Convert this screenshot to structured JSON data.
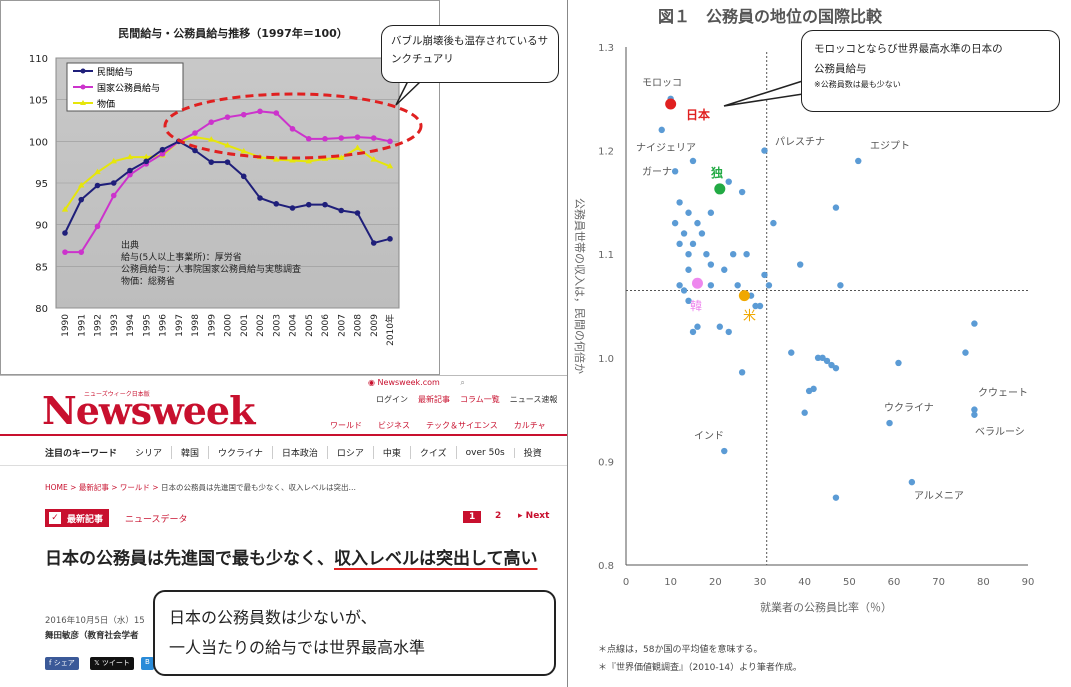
{
  "chart1": {
    "title": "民間給与・公務員給与推移（1997年＝100）",
    "y_ticks": [
      "110",
      "105",
      "100",
      "95",
      "90",
      "85",
      "80"
    ],
    "x_ticks": [
      "1990",
      "1991",
      "1992",
      "1993",
      "1994",
      "1995",
      "1996",
      "1997",
      "1998",
      "1999",
      "2000",
      "2001",
      "2002",
      "2003",
      "2004",
      "2005",
      "2006",
      "2007",
      "2008",
      "2009",
      "2010年"
    ],
    "legend": [
      "民間給与",
      "国家公務員給与",
      "物価"
    ],
    "source_lines": [
      "出典",
      "給与(5人以上事業所)：厚労省",
      "公務員給与：人事院国家公務員給与実態調査",
      "物価：総務省"
    ],
    "callout": "バブル崩壊後も温存されているサンクチュアリ",
    "colors": {
      "private": "#1f1f7a",
      "public": "#cc33cc",
      "prices": "#e6e60a",
      "highlight": "#e02020"
    }
  },
  "chart1_data": {
    "type": "line",
    "title": "民間給与・公務員給与推移（1997年＝100）",
    "x": [
      "1990",
      "1991",
      "1992",
      "1993",
      "1994",
      "1995",
      "1996",
      "1997",
      "1998",
      "1999",
      "2000",
      "2001",
      "2002",
      "2003",
      "2004",
      "2005",
      "2006",
      "2007",
      "2008",
      "2009",
      "2010年"
    ],
    "ylim": [
      80,
      110
    ],
    "series": [
      {
        "name": "民間給与",
        "values": [
          89,
          93,
          94.7,
          95,
          96.5,
          97.6,
          99,
          100,
          98.9,
          97.5,
          97.5,
          95.8,
          93.2,
          92.5,
          92,
          92.4,
          92.4,
          91.7,
          91.4,
          87.8,
          88.3
        ]
      },
      {
        "name": "国家公務員給与",
        "values": [
          86.7,
          86.7,
          89.8,
          93.5,
          96,
          97.3,
          98.5,
          100,
          101,
          102.3,
          102.9,
          103.2,
          103.6,
          103.4,
          101.5,
          100.3,
          100.3,
          100.4,
          100.5,
          100.4,
          100
        ]
      },
      {
        "name": "物価",
        "values": [
          91.8,
          94.7,
          96.3,
          97.6,
          98.1,
          98.1,
          98.3,
          100,
          100.5,
          100.2,
          99.5,
          98.8,
          98.1,
          97.8,
          97.7,
          97.6,
          97.9,
          98,
          99.2,
          97.8,
          97
        ]
      }
    ]
  },
  "chart2": {
    "title": "図１　公務員の地位の国際比較",
    "ylabel": "公務員世帯の収入は，民間の何倍か",
    "xlabel": "就業者の公務員比率（％）",
    "x_ticks": [
      "0",
      "10",
      "20",
      "30",
      "40",
      "50",
      "60",
      "70",
      "80",
      "90"
    ],
    "y_ticks": [
      "1.3",
      "1.2",
      "1.1",
      "1.0",
      "0.9",
      "0.8"
    ],
    "labels": {
      "morocco": "モロッコ",
      "japan": "日本",
      "nigeria": "ナイジェリア",
      "ghana": "ガーナ",
      "germany": "独",
      "palestine": "パレスチナ",
      "egypt": "エジプト",
      "korea": "韓",
      "usa": "米",
      "india": "インド",
      "ukraine": "ウクライナ",
      "kuwait": "クウェート",
      "belarus": "ベラルーシ",
      "armenia": "アルメニア"
    },
    "notes": [
      "＊点線は，58か国の平均値を意味する。",
      "＊『世界価値観調査』（2010-14）より筆者作成。"
    ],
    "callout_line1": "モロッコとならび世界最高水準の日本の",
    "callout_line2": "公務員給与",
    "callout_small": "※公務員数は最も少ない",
    "colors": {
      "dot": "#5b9bd5",
      "japan": "#e02020",
      "germany": "#22aa44",
      "korea": "#ee88ee",
      "usa": "#f0a800",
      "grid": "#555"
    }
  },
  "chart2_data": {
    "type": "scatter",
    "title": "図１　公務員の地位の国際比較",
    "xlabel": "就業者の公務員比率（％）",
    "ylabel": "公務員世帯の収入は，民間の何倍か",
    "xlim": [
      0,
      90
    ],
    "ylim": [
      0.8,
      1.3
    ],
    "mean": {
      "x": 31.5,
      "y": 1.065
    },
    "highlighted": [
      {
        "label": "日本",
        "x": 10,
        "y": 1.245
      },
      {
        "label": "独",
        "x": 21,
        "y": 1.163
      },
      {
        "label": "韓",
        "x": 16,
        "y": 1.072
      },
      {
        "label": "米",
        "x": 26.5,
        "y": 1.06
      }
    ],
    "points": [
      [
        10,
        1.25
      ],
      [
        8,
        1.22
      ],
      [
        15,
        1.19
      ],
      [
        11,
        1.18
      ],
      [
        26,
        1.16
      ],
      [
        23,
        1.17
      ],
      [
        12,
        1.15
      ],
      [
        14,
        1.14
      ],
      [
        11,
        1.13
      ],
      [
        19,
        1.14
      ],
      [
        16,
        1.13
      ],
      [
        13,
        1.12
      ],
      [
        17,
        1.12
      ],
      [
        12,
        1.11
      ],
      [
        15,
        1.11
      ],
      [
        18,
        1.1
      ],
      [
        14,
        1.1
      ],
      [
        19,
        1.09
      ],
      [
        24,
        1.1
      ],
      [
        27,
        1.1
      ],
      [
        14,
        1.085
      ],
      [
        22,
        1.085
      ],
      [
        19,
        1.07
      ],
      [
        25,
        1.07
      ],
      [
        28,
        1.06
      ],
      [
        30,
        1.05
      ],
      [
        12,
        1.07
      ],
      [
        13,
        1.065
      ],
      [
        14,
        1.055
      ],
      [
        16,
        1.03
      ],
      [
        15,
        1.025
      ],
      [
        23,
        1.025
      ],
      [
        21,
        1.03
      ],
      [
        29,
        1.05
      ],
      [
        31,
        1.2
      ],
      [
        33,
        1.13
      ],
      [
        31,
        1.08
      ],
      [
        32,
        1.07
      ],
      [
        37,
        1.005
      ],
      [
        39,
        1.09
      ],
      [
        47,
        1.145
      ],
      [
        48,
        1.07
      ],
      [
        52,
        1.19
      ],
      [
        43,
        1.0
      ],
      [
        44,
        1.0
      ],
      [
        45,
        0.997
      ],
      [
        46,
        0.993
      ],
      [
        47,
        0.99
      ],
      [
        41,
        0.968
      ],
      [
        42,
        0.97
      ],
      [
        40,
        0.947
      ],
      [
        26,
        0.986
      ],
      [
        22,
        0.91
      ],
      [
        47,
        0.865
      ],
      [
        59,
        0.937
      ],
      [
        61,
        0.995
      ],
      [
        64,
        0.88
      ],
      [
        76,
        1.005
      ],
      [
        78,
        1.033
      ],
      [
        78,
        0.95
      ],
      [
        78,
        0.945
      ]
    ]
  },
  "news": {
    "logo": "Newsweek",
    "logo_sub": "ニューズウィーク日本版",
    "site_link": "Newsweek.com",
    "top_links": [
      "ログイン",
      "最新記事",
      "コラム一覧",
      "ニュース速報"
    ],
    "nav": [
      "ワールド",
      "ビジネス",
      "テック＆サイエンス",
      "カルチャ"
    ],
    "keywords_label": "注目のキーワード",
    "keywords": [
      "シリア",
      "韓国",
      "ウクライナ",
      "日本政治",
      "ロシア",
      "中東",
      "クイズ",
      "over 50s",
      "投資"
    ],
    "breadcrumb": [
      "HOME",
      "最新記事",
      "ワールド",
      "日本の公務員は先進国で最も少なく、収入レベルは突出…"
    ],
    "tag": "最新記事",
    "tag2": "ニュースデータ",
    "pager": [
      "1",
      "2",
      "Next"
    ],
    "headline_part1": "日本の公務員は先進国で最も少なく、",
    "headline_part2": "収入レベルは突出して高い",
    "date": "2016年10月5日（水）15",
    "author": "舞田敏彦（教育社会学者",
    "share": [
      "シェア",
      "ツイート",
      "B"
    ],
    "callout_line1": "日本の公務員数は少ないが、",
    "callout_line2": "一人当たりの給与では世界最高水準"
  }
}
